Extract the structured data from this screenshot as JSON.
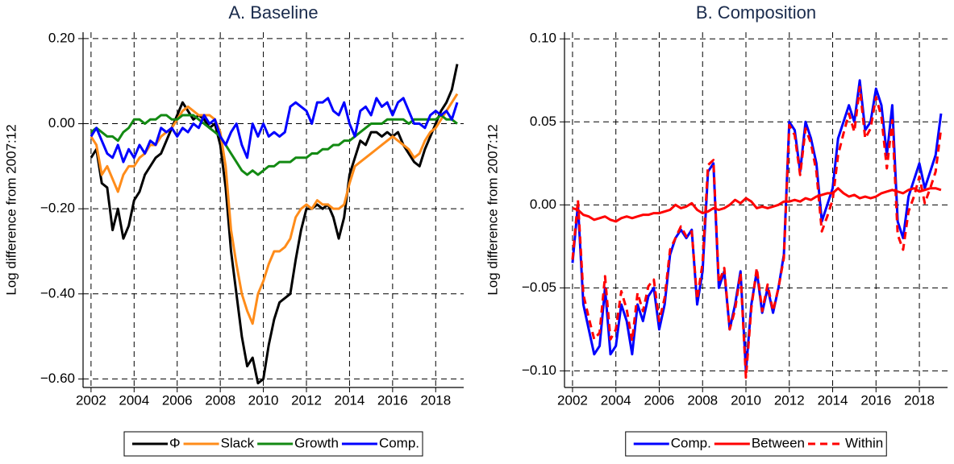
{
  "chart_data": [
    {
      "type": "line",
      "title": "A. Baseline",
      "y_label": "Log difference from 2007:12",
      "x": [
        2002,
        2002.25,
        2002.5,
        2002.75,
        2003,
        2003.25,
        2003.5,
        2003.75,
        2004,
        2004.25,
        2004.5,
        2004.75,
        2005,
        2005.25,
        2005.5,
        2005.75,
        2006,
        2006.25,
        2006.5,
        2006.75,
        2007,
        2007.25,
        2007.5,
        2007.75,
        2008,
        2008.25,
        2008.5,
        2008.75,
        2009,
        2009.25,
        2009.5,
        2009.75,
        2010,
        2010.25,
        2010.5,
        2010.75,
        2011,
        2011.25,
        2011.5,
        2011.75,
        2012,
        2012.25,
        2012.5,
        2012.75,
        2013,
        2013.25,
        2013.5,
        2013.75,
        2014,
        2014.25,
        2014.5,
        2014.75,
        2015,
        2015.25,
        2015.5,
        2015.75,
        2016,
        2016.25,
        2016.5,
        2016.75,
        2017,
        2017.25,
        2017.5,
        2017.75,
        2018,
        2018.25,
        2018.5,
        2018.75,
        2019
      ],
      "xlim": [
        2001.63,
        2019.3
      ],
      "xticks": [
        2002,
        2004,
        2006,
        2008,
        2010,
        2012,
        2014,
        2016,
        2018
      ],
      "ylim": [
        -0.62,
        0.215
      ],
      "yticks": [
        {
          "value": -0.6,
          "label": "−0.60"
        },
        {
          "value": -0.4,
          "label": "−0.40"
        },
        {
          "value": -0.2,
          "label": "−0.20"
        },
        {
          "value": 0,
          "label": "0.00"
        },
        {
          "value": 0.2,
          "label": "0.20"
        }
      ],
      "grid": true,
      "legend": "bottom",
      "series": [
        {
          "name": "Φ",
          "color": "#000000",
          "values": [
            -0.08,
            -0.06,
            -0.14,
            -0.15,
            -0.25,
            -0.2,
            -0.27,
            -0.24,
            -0.18,
            -0.16,
            -0.12,
            -0.1,
            -0.08,
            -0.07,
            -0.04,
            -0.01,
            0.02,
            0.05,
            0.03,
            0.01,
            0.02,
            0.01,
            -0.01,
            0.0,
            -0.05,
            -0.15,
            -0.3,
            -0.4,
            -0.5,
            -0.57,
            -0.55,
            -0.61,
            -0.6,
            -0.52,
            -0.46,
            -0.42,
            -0.41,
            -0.4,
            -0.32,
            -0.25,
            -0.2,
            -0.2,
            -0.19,
            -0.2,
            -0.19,
            -0.22,
            -0.27,
            -0.22,
            -0.12,
            -0.08,
            -0.04,
            -0.05,
            -0.02,
            -0.02,
            -0.03,
            -0.02,
            -0.03,
            -0.02,
            -0.05,
            -0.07,
            -0.09,
            -0.1,
            -0.06,
            -0.03,
            0.0,
            0.03,
            0.05,
            0.08,
            0.14
          ]
        },
        {
          "name": "Slack",
          "color": "#ff8c1a",
          "values": [
            -0.03,
            -0.05,
            -0.12,
            -0.1,
            -0.13,
            -0.16,
            -0.12,
            -0.1,
            -0.1,
            -0.08,
            -0.07,
            -0.05,
            -0.05,
            -0.03,
            -0.02,
            -0.01,
            0.01,
            0.03,
            0.04,
            0.03,
            0.02,
            0.02,
            0.02,
            0.01,
            -0.02,
            -0.1,
            -0.25,
            -0.33,
            -0.4,
            -0.44,
            -0.47,
            -0.4,
            -0.37,
            -0.33,
            -0.3,
            -0.3,
            -0.29,
            -0.27,
            -0.22,
            -0.2,
            -0.19,
            -0.2,
            -0.18,
            -0.19,
            -0.19,
            -0.2,
            -0.2,
            -0.19,
            -0.14,
            -0.1,
            -0.09,
            -0.08,
            -0.07,
            -0.06,
            -0.05,
            -0.04,
            -0.03,
            -0.04,
            -0.05,
            -0.06,
            -0.08,
            -0.07,
            -0.04,
            -0.02,
            -0.01,
            0.01,
            0.03,
            0.05,
            0.07
          ]
        },
        {
          "name": "Growth",
          "color": "#138a13",
          "values": [
            -0.02,
            -0.01,
            -0.02,
            -0.03,
            -0.03,
            -0.04,
            -0.02,
            -0.01,
            0.01,
            0.01,
            0.0,
            0.01,
            0.01,
            0.02,
            0.02,
            0.01,
            0.01,
            0.02,
            0.02,
            0.02,
            0.01,
            0.0,
            -0.01,
            -0.02,
            -0.03,
            -0.05,
            -0.07,
            -0.09,
            -0.11,
            -0.12,
            -0.11,
            -0.12,
            -0.11,
            -0.1,
            -0.1,
            -0.09,
            -0.09,
            -0.09,
            -0.08,
            -0.08,
            -0.08,
            -0.07,
            -0.07,
            -0.06,
            -0.06,
            -0.05,
            -0.05,
            -0.04,
            -0.04,
            -0.03,
            -0.02,
            -0.01,
            0.0,
            0.0,
            0.0,
            0.01,
            0.01,
            0.01,
            0.01,
            0.0,
            0.01,
            0.01,
            0.01,
            0.01,
            0.01,
            0.02,
            0.01,
            0.01,
            0.0
          ]
        },
        {
          "name": "Comp.",
          "color": "#0000ff",
          "values": [
            -0.03,
            -0.01,
            -0.04,
            -0.07,
            -0.08,
            -0.05,
            -0.09,
            -0.06,
            -0.08,
            -0.05,
            -0.07,
            -0.04,
            -0.05,
            -0.01,
            -0.02,
            -0.01,
            -0.03,
            -0.01,
            -0.02,
            0.0,
            -0.01,
            0.02,
            0.0,
            0.01,
            -0.03,
            -0.05,
            -0.02,
            0.0,
            -0.05,
            -0.08,
            0.0,
            -0.03,
            0.0,
            -0.03,
            -0.02,
            -0.03,
            -0.02,
            0.04,
            0.05,
            0.04,
            0.03,
            0.0,
            0.05,
            0.05,
            0.06,
            0.03,
            0.02,
            0.05,
            0.0,
            -0.03,
            0.03,
            0.04,
            0.02,
            0.06,
            0.04,
            0.05,
            0.02,
            0.05,
            0.06,
            0.03,
            0.0,
            0.0,
            -0.01,
            0.02,
            0.03,
            0.02,
            0.03,
            0.01,
            0.05
          ]
        }
      ]
    },
    {
      "type": "line",
      "title": "B. Composition",
      "y_label": "Log difference from 2007:12",
      "x": [
        2002,
        2002.25,
        2002.5,
        2002.75,
        2003,
        2003.25,
        2003.5,
        2003.75,
        2004,
        2004.25,
        2004.5,
        2004.75,
        2005,
        2005.25,
        2005.5,
        2005.75,
        2006,
        2006.25,
        2006.5,
        2006.75,
        2007,
        2007.25,
        2007.5,
        2007.75,
        2008,
        2008.25,
        2008.5,
        2008.75,
        2009,
        2009.25,
        2009.5,
        2009.75,
        2010,
        2010.25,
        2010.5,
        2010.75,
        2011,
        2011.25,
        2011.5,
        2011.75,
        2012,
        2012.25,
        2012.5,
        2012.75,
        2013,
        2013.25,
        2013.5,
        2013.75,
        2014,
        2014.25,
        2014.5,
        2014.75,
        2015,
        2015.25,
        2015.5,
        2015.75,
        2016,
        2016.25,
        2016.5,
        2016.75,
        2017,
        2017.25,
        2017.5,
        2017.75,
        2018,
        2018.25,
        2018.5,
        2018.75,
        2019
      ],
      "xlim": [
        2001.63,
        2019.3
      ],
      "xticks": [
        2002,
        2004,
        2006,
        2008,
        2010,
        2012,
        2014,
        2016,
        2018
      ],
      "ylim": [
        -0.11,
        0.104
      ],
      "yticks": [
        {
          "value": -0.1,
          "label": "−0.10"
        },
        {
          "value": -0.05,
          "label": "−0.05"
        },
        {
          "value": 0,
          "label": "0.00"
        },
        0.05,
        {
          "value": 0.1,
          "label": "0.10"
        }
      ],
      "grid": true,
      "legend": "bottom",
      "series": [
        {
          "name": "Comp.",
          "color": "#0000ff",
          "dash": false,
          "values": [
            -0.035,
            0.0,
            -0.06,
            -0.075,
            -0.09,
            -0.085,
            -0.05,
            -0.09,
            -0.085,
            -0.06,
            -0.07,
            -0.09,
            -0.06,
            -0.07,
            -0.055,
            -0.05,
            -0.075,
            -0.06,
            -0.03,
            -0.02,
            -0.015,
            -0.02,
            -0.015,
            -0.06,
            -0.04,
            0.02,
            0.025,
            -0.05,
            -0.04,
            -0.075,
            -0.06,
            -0.04,
            -0.1,
            -0.06,
            -0.04,
            -0.065,
            -0.05,
            -0.065,
            -0.05,
            -0.03,
            0.05,
            0.045,
            0.02,
            0.05,
            0.04,
            0.025,
            -0.01,
            0.0,
            0.01,
            0.04,
            0.05,
            0.06,
            0.05,
            0.075,
            0.045,
            0.05,
            0.07,
            0.06,
            0.03,
            0.06,
            -0.01,
            -0.02,
            0.005,
            0.015,
            0.025,
            0.01,
            0.02,
            0.03,
            0.055
          ]
        },
        {
          "name": "Between",
          "color": "#ff0000",
          "dash": false,
          "values": [
            -0.002,
            -0.003,
            -0.006,
            -0.007,
            -0.009,
            -0.008,
            -0.007,
            -0.009,
            -0.01,
            -0.008,
            -0.007,
            -0.008,
            -0.007,
            -0.006,
            -0.006,
            -0.005,
            -0.005,
            -0.004,
            -0.003,
            0.0,
            -0.002,
            -0.001,
            0.001,
            -0.003,
            -0.005,
            -0.004,
            -0.002,
            -0.003,
            -0.002,
            0.0,
            0.003,
            0.001,
            0.004,
            0.002,
            -0.002,
            -0.001,
            -0.002,
            -0.001,
            0.0,
            0.002,
            0.002,
            0.003,
            0.002,
            0.004,
            0.003,
            0.005,
            0.006,
            0.007,
            0.007,
            0.01,
            0.007,
            0.005,
            0.006,
            0.004,
            0.005,
            0.004,
            0.005,
            0.007,
            0.008,
            0.009,
            0.008,
            0.007,
            0.009,
            0.01,
            0.008,
            0.009,
            0.01,
            0.01,
            0.009
          ]
        },
        {
          "name": "Within",
          "color": "#ff0000",
          "dash": true,
          "values": [
            -0.033,
            0.003,
            -0.054,
            -0.068,
            -0.081,
            -0.077,
            -0.043,
            -0.081,
            -0.075,
            -0.052,
            -0.063,
            -0.082,
            -0.053,
            -0.064,
            -0.049,
            -0.045,
            -0.07,
            -0.056,
            -0.027,
            -0.02,
            -0.013,
            -0.019,
            -0.016,
            -0.057,
            -0.035,
            0.024,
            0.027,
            -0.047,
            -0.038,
            -0.075,
            -0.063,
            -0.041,
            -0.104,
            -0.062,
            -0.038,
            -0.064,
            -0.048,
            -0.064,
            -0.05,
            -0.032,
            0.048,
            0.042,
            0.018,
            0.046,
            0.037,
            0.02,
            -0.016,
            -0.007,
            0.003,
            0.03,
            0.043,
            0.055,
            0.044,
            0.071,
            0.04,
            0.046,
            0.065,
            0.053,
            0.022,
            0.051,
            -0.018,
            -0.027,
            -0.004,
            0.005,
            0.017,
            0.001,
            0.01,
            0.02,
            0.046
          ]
        }
      ]
    }
  ]
}
